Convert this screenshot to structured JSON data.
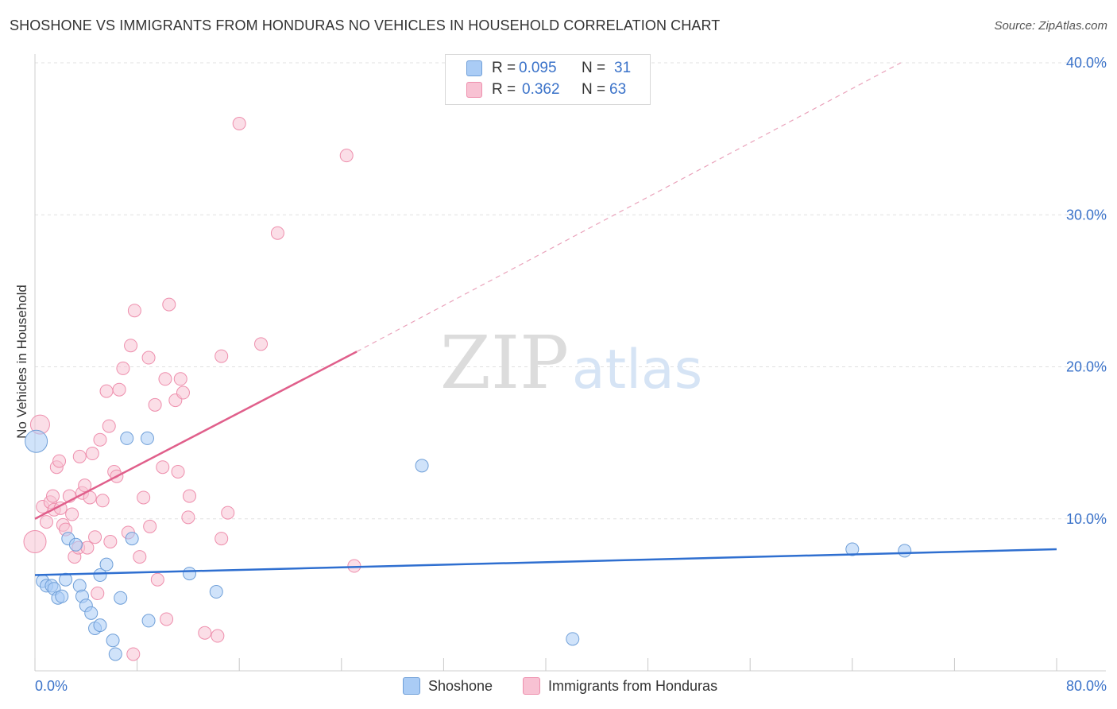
{
  "title": "SHOSHONE VS IMMIGRANTS FROM HONDURAS NO VEHICLES IN HOUSEHOLD CORRELATION CHART",
  "source": "Source: ZipAtlas.com",
  "watermark": {
    "zip": "ZIP",
    "atlas": "atlas"
  },
  "legend_top": {
    "rows": [
      {
        "r_label": "R =",
        "r_value": "0.095",
        "n_label": "N =",
        "n_value": "31",
        "color": "#aaccf5"
      },
      {
        "r_label": "R =",
        "r_value": "0.362",
        "n_label": "N =",
        "n_value": "63",
        "color": "#f8c2d3"
      }
    ]
  },
  "legend_bottom": [
    {
      "label": "Shoshone",
      "color": "#aaccf5"
    },
    {
      "label": "Immigrants from Honduras",
      "color": "#f8c2d3"
    }
  ],
  "chart_data": {
    "type": "scatter",
    "title": "SHOSHONE VS IMMIGRANTS FROM HONDURAS NO VEHICLES IN HOUSEHOLD CORRELATION CHART",
    "xlabel": "",
    "ylabel": "No Vehicles in Household",
    "xlim": [
      0,
      80
    ],
    "ylim": [
      0,
      40
    ],
    "x_tick_labels": [
      {
        "value": 0,
        "label": "0.0%"
      },
      {
        "value": 80,
        "label": "80.0%"
      }
    ],
    "y_tick_labels": [
      {
        "value": 10,
        "label": "10.0%"
      },
      {
        "value": 20,
        "label": "20.0%"
      },
      {
        "value": 30,
        "label": "30.0%"
      },
      {
        "value": 40,
        "label": "40.0%"
      }
    ],
    "grid": true,
    "series": [
      {
        "name": "Shoshone",
        "color": "#aaccf5",
        "stroke": "#6f9fd8",
        "trend": {
          "x": [
            0,
            80
          ],
          "y": [
            6.3,
            8.0
          ],
          "color": "#2f6fd0"
        },
        "points": [
          {
            "x": 0.1,
            "y": 15.1,
            "big": true
          },
          {
            "x": 0.6,
            "y": 5.9
          },
          {
            "x": 0.9,
            "y": 5.6
          },
          {
            "x": 1.3,
            "y": 5.6
          },
          {
            "x": 1.5,
            "y": 5.4
          },
          {
            "x": 1.8,
            "y": 4.8
          },
          {
            "x": 2.1,
            "y": 4.9
          },
          {
            "x": 2.4,
            "y": 6.0
          },
          {
            "x": 2.6,
            "y": 8.7
          },
          {
            "x": 3.2,
            "y": 8.3
          },
          {
            "x": 3.5,
            "y": 5.6
          },
          {
            "x": 3.7,
            "y": 4.9
          },
          {
            "x": 4.0,
            "y": 4.3
          },
          {
            "x": 4.4,
            "y": 3.8
          },
          {
            "x": 4.7,
            "y": 2.8
          },
          {
            "x": 5.1,
            "y": 3.0
          },
          {
            "x": 5.1,
            "y": 6.3
          },
          {
            "x": 5.6,
            "y": 7.0
          },
          {
            "x": 6.1,
            "y": 2.0
          },
          {
            "x": 6.3,
            "y": 1.1
          },
          {
            "x": 6.7,
            "y": 4.8
          },
          {
            "x": 7.2,
            "y": 15.3
          },
          {
            "x": 7.6,
            "y": 8.7
          },
          {
            "x": 8.8,
            "y": 15.3
          },
          {
            "x": 8.9,
            "y": 3.3
          },
          {
            "x": 12.1,
            "y": 6.4
          },
          {
            "x": 14.2,
            "y": 5.2
          },
          {
            "x": 30.3,
            "y": 13.5
          },
          {
            "x": 42.1,
            "y": 2.1
          },
          {
            "x": 64.0,
            "y": 8.0
          },
          {
            "x": 68.1,
            "y": 7.9
          }
        ]
      },
      {
        "name": "Immigrants from Honduras",
        "color": "#f8c2d3",
        "stroke": "#ee8fad",
        "trend": {
          "x": [
            0,
            25.2
          ],
          "y": [
            10.0,
            21.0
          ],
          "extend_to": [
            67.8,
            40.0
          ],
          "color": "#e05f8b"
        },
        "points": [
          {
            "x": 0.0,
            "y": 8.5,
            "big": true
          },
          {
            "x": 0.4,
            "y": 16.2,
            "big2": true
          },
          {
            "x": 0.6,
            "y": 10.8
          },
          {
            "x": 0.9,
            "y": 9.8
          },
          {
            "x": 1.2,
            "y": 11.1
          },
          {
            "x": 1.4,
            "y": 11.5
          },
          {
            "x": 1.5,
            "y": 10.6
          },
          {
            "x": 1.7,
            "y": 13.4
          },
          {
            "x": 1.9,
            "y": 13.8
          },
          {
            "x": 2.2,
            "y": 9.6
          },
          {
            "x": 2.4,
            "y": 9.3
          },
          {
            "x": 2.7,
            "y": 11.5
          },
          {
            "x": 2.9,
            "y": 10.3
          },
          {
            "x": 3.1,
            "y": 7.5
          },
          {
            "x": 3.4,
            "y": 8.1
          },
          {
            "x": 3.5,
            "y": 14.1
          },
          {
            "x": 3.7,
            "y": 11.7
          },
          {
            "x": 3.9,
            "y": 12.2
          },
          {
            "x": 4.1,
            "y": 8.1
          },
          {
            "x": 4.3,
            "y": 11.4
          },
          {
            "x": 4.5,
            "y": 14.3
          },
          {
            "x": 4.7,
            "y": 8.8
          },
          {
            "x": 4.9,
            "y": 5.1
          },
          {
            "x": 5.1,
            "y": 15.2
          },
          {
            "x": 5.3,
            "y": 11.2
          },
          {
            "x": 5.6,
            "y": 18.4
          },
          {
            "x": 5.8,
            "y": 16.1
          },
          {
            "x": 5.9,
            "y": 8.5
          },
          {
            "x": 6.2,
            "y": 13.1
          },
          {
            "x": 6.4,
            "y": 12.8
          },
          {
            "x": 6.6,
            "y": 18.5
          },
          {
            "x": 6.9,
            "y": 19.9
          },
          {
            "x": 7.3,
            "y": 9.1
          },
          {
            "x": 7.5,
            "y": 21.4
          },
          {
            "x": 7.7,
            "y": 1.1
          },
          {
            "x": 7.8,
            "y": 23.7
          },
          {
            "x": 8.2,
            "y": 7.5
          },
          {
            "x": 8.5,
            "y": 11.4
          },
          {
            "x": 8.9,
            "y": 20.6
          },
          {
            "x": 9.0,
            "y": 9.5
          },
          {
            "x": 9.4,
            "y": 17.5
          },
          {
            "x": 9.6,
            "y": 6.0
          },
          {
            "x": 10.0,
            "y": 13.4
          },
          {
            "x": 10.2,
            "y": 19.2
          },
          {
            "x": 10.3,
            "y": 3.4
          },
          {
            "x": 10.5,
            "y": 24.1
          },
          {
            "x": 11.0,
            "y": 17.8
          },
          {
            "x": 11.2,
            "y": 13.1
          },
          {
            "x": 11.4,
            "y": 19.2
          },
          {
            "x": 11.6,
            "y": 18.3
          },
          {
            "x": 12.0,
            "y": 10.1
          },
          {
            "x": 12.1,
            "y": 11.5
          },
          {
            "x": 13.3,
            "y": 2.5
          },
          {
            "x": 14.3,
            "y": 2.3
          },
          {
            "x": 14.6,
            "y": 20.7
          },
          {
            "x": 14.6,
            "y": 8.7
          },
          {
            "x": 15.1,
            "y": 10.4
          },
          {
            "x": 16.0,
            "y": 36.0
          },
          {
            "x": 17.7,
            "y": 21.5
          },
          {
            "x": 19.0,
            "y": 28.8
          },
          {
            "x": 24.4,
            "y": 33.9
          },
          {
            "x": 25.0,
            "y": 6.9
          },
          {
            "x": 2.0,
            "y": 10.7
          }
        ]
      }
    ]
  }
}
